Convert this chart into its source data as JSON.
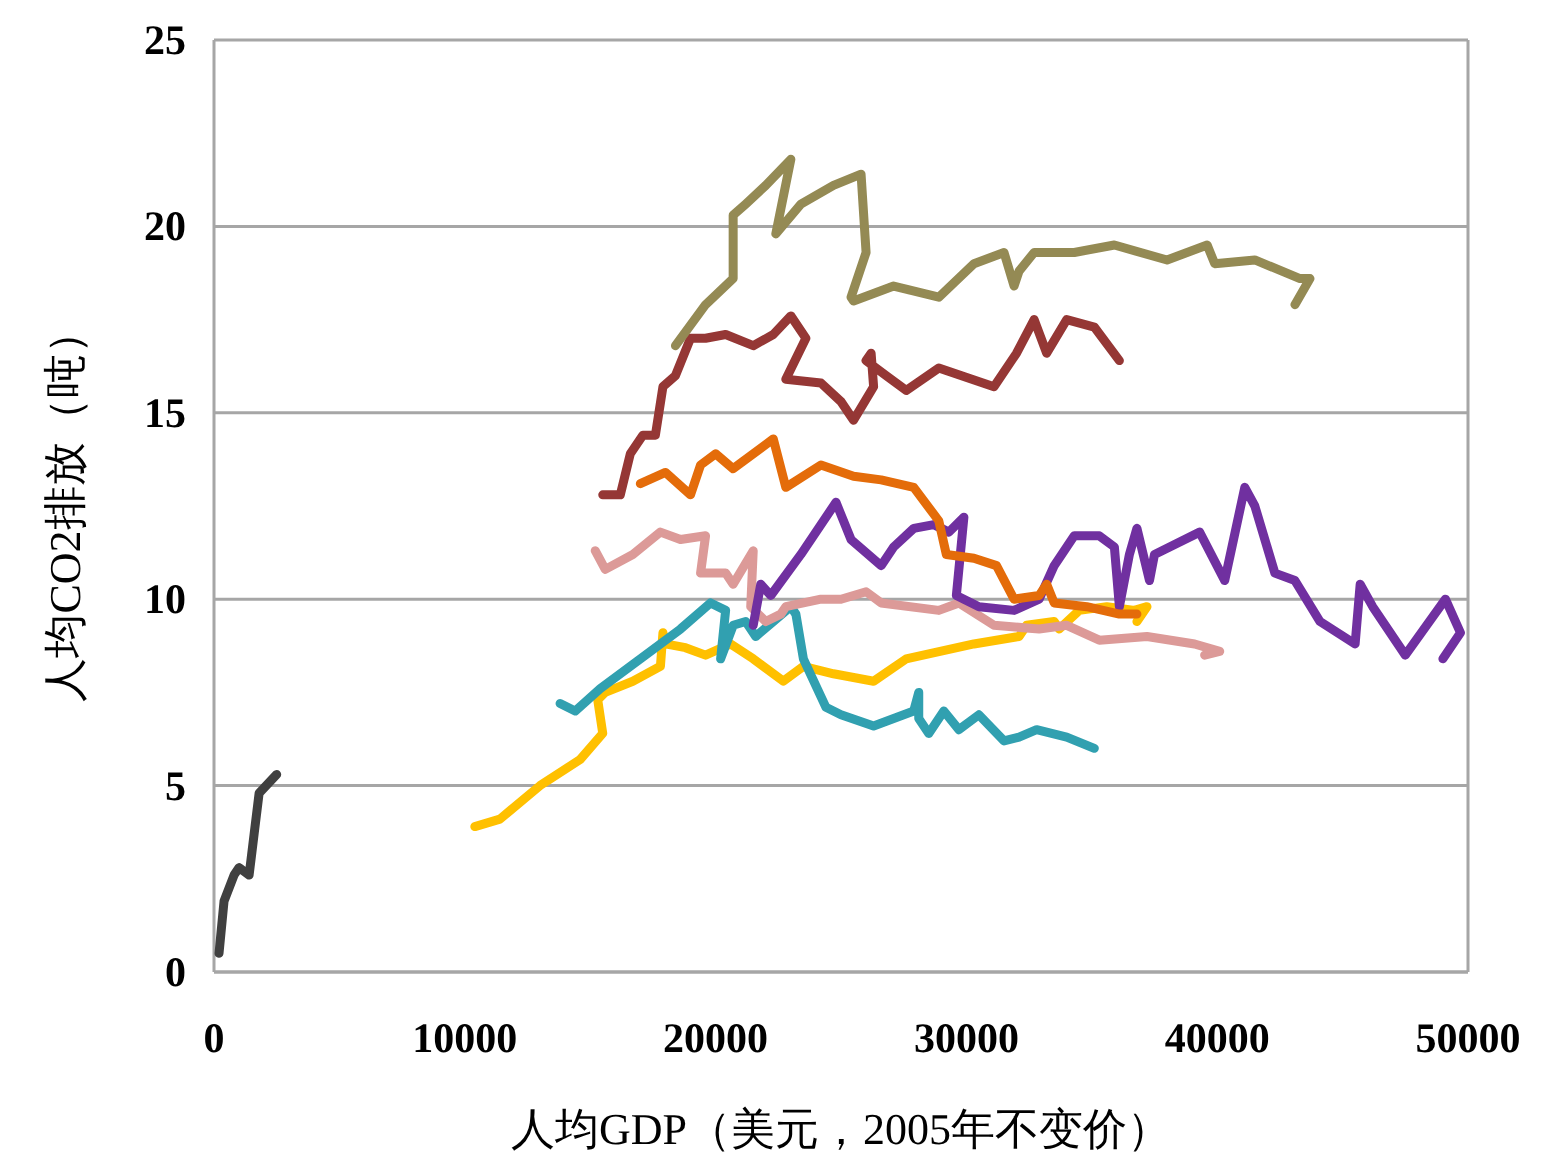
{
  "chart_data": {
    "type": "line",
    "xlabel": "人均GDP（美元，2005年不变价）",
    "ylabel": "人均CO2排放（吨）",
    "xlim": [
      0,
      50000
    ],
    "xticks": [
      0,
      10000,
      20000,
      30000,
      40000,
      50000
    ],
    "ylim": [
      0,
      25
    ],
    "yticks": [
      0,
      5,
      10,
      15,
      20,
      25
    ],
    "grid": "y",
    "series": [
      {
        "color": "#404040",
        "x": [
          200,
          400,
          800,
          1000,
          1400,
          1600,
          1800,
          2500
        ],
        "values": [
          0.5,
          1.9,
          2.6,
          2.8,
          2.6,
          3.7,
          4.8,
          5.3
        ]
      },
      {
        "color": "#ffc000",
        "x": [
          10400,
          11400,
          13000,
          14600,
          15500,
          15300,
          15600,
          16700,
          17800,
          17900,
          18000,
          18800,
          19600,
          20600,
          21500,
          22700,
          23500,
          24700,
          26300,
          27600,
          30300,
          32100,
          32400,
          33500,
          33700,
          34500,
          35600,
          36700,
          37200,
          36800
        ],
        "values": [
          3.9,
          4.1,
          5.0,
          5.7,
          6.4,
          7.3,
          7.5,
          7.8,
          8.2,
          9.1,
          8.8,
          8.7,
          8.5,
          8.8,
          8.4,
          7.8,
          8.2,
          8.0,
          7.8,
          8.4,
          8.8,
          9.0,
          9.3,
          9.4,
          9.2,
          9.7,
          9.8,
          9.7,
          9.8,
          9.4
        ]
      },
      {
        "color": "#31a0b0",
        "x": [
          13800,
          14400,
          15400,
          17000,
          18600,
          19800,
          20400,
          20200,
          20700,
          21200,
          21600,
          22300,
          23000,
          23200,
          23500,
          24400,
          25000,
          26300,
          27900,
          28100,
          28100,
          28500,
          29100,
          29700,
          30500,
          31500,
          32100,
          32800,
          34000,
          35100
        ],
        "values": [
          7.2,
          7.0,
          7.6,
          8.4,
          9.2,
          9.9,
          9.7,
          8.4,
          9.3,
          9.4,
          9.0,
          9.4,
          9.8,
          9.6,
          8.4,
          7.1,
          6.9,
          6.6,
          7.0,
          7.5,
          6.8,
          6.4,
          7.0,
          6.5,
          6.9,
          6.2,
          6.3,
          6.5,
          6.3,
          6.0
        ]
      },
      {
        "color": "#dc9a98",
        "x": [
          15200,
          15600,
          16700,
          17800,
          18600,
          19600,
          19400,
          20400,
          20700,
          21500,
          21400,
          22000,
          22600,
          22800,
          24200,
          25000,
          26000,
          26600,
          28900,
          29700,
          31100,
          32900,
          34000,
          35300,
          37200,
          39100,
          40100,
          39500
        ],
        "values": [
          11.3,
          10.8,
          11.2,
          11.8,
          11.6,
          11.7,
          10.7,
          10.7,
          10.4,
          11.3,
          9.8,
          9.4,
          9.6,
          9.8,
          10.0,
          10.0,
          10.2,
          9.9,
          9.7,
          9.9,
          9.3,
          9.2,
          9.3,
          8.9,
          9.0,
          8.8,
          8.6,
          8.5
        ]
      },
      {
        "color": "#7030a0",
        "x": [
          21500,
          21800,
          22200,
          23400,
          24800,
          25400,
          26600,
          27100,
          27900,
          28700,
          29300,
          29900,
          29600,
          30500,
          31900,
          32900,
          33500,
          34300,
          35300,
          35900,
          36100,
          36500,
          36800,
          37300,
          37500,
          39300,
          40300,
          41100,
          41500,
          42300,
          43100,
          44100,
          45500,
          45700,
          46200,
          47500,
          49100,
          49700,
          49000
        ],
        "values": [
          9.3,
          10.4,
          10.1,
          11.2,
          12.6,
          11.6,
          10.9,
          11.4,
          11.9,
          12.0,
          11.8,
          12.2,
          10.1,
          9.8,
          9.7,
          10.0,
          10.9,
          11.7,
          11.7,
          11.4,
          9.8,
          11.2,
          11.9,
          10.5,
          11.2,
          11.8,
          10.5,
          13.0,
          12.5,
          10.7,
          10.5,
          9.4,
          8.8,
          10.4,
          9.8,
          8.5,
          10.0,
          9.1,
          8.4
        ]
      },
      {
        "color": "#e46c0a",
        "x": [
          17000,
          18000,
          19000,
          19400,
          20000,
          20700,
          22300,
          22800,
          24200,
          25500,
          26600,
          27900,
          28900,
          29200,
          30300,
          31200,
          31900,
          32900,
          33200,
          33500,
          34800,
          36100,
          36800
        ],
        "values": [
          13.1,
          13.4,
          12.8,
          13.6,
          13.9,
          13.5,
          14.3,
          13.0,
          13.6,
          13.3,
          13.2,
          13.0,
          12.1,
          11.2,
          11.1,
          10.9,
          10.0,
          10.1,
          10.4,
          9.9,
          9.8,
          9.6,
          9.6
        ]
      },
      {
        "color": "#953735",
        "x": [
          15500,
          16200,
          16600,
          17100,
          17600,
          17900,
          18400,
          19000,
          19600,
          20400,
          21500,
          22300,
          23000,
          23600,
          22800,
          24200,
          25000,
          25500,
          26300,
          26200,
          26000,
          26800,
          27600,
          28900,
          31100,
          32000,
          32700,
          33200,
          34000,
          35100,
          36100
        ],
        "values": [
          12.8,
          12.8,
          13.9,
          14.4,
          14.4,
          15.7,
          16.0,
          17.0,
          17.0,
          17.1,
          16.8,
          17.1,
          17.6,
          17.0,
          15.9,
          15.8,
          15.3,
          14.8,
          15.7,
          16.6,
          16.4,
          16.0,
          15.6,
          16.2,
          15.7,
          16.6,
          17.5,
          16.6,
          17.5,
          17.3,
          16.4
        ]
      },
      {
        "color": "#948a54",
        "x": [
          18400,
          19600,
          20700,
          20700,
          21200,
          22000,
          23000,
          22400,
          23400,
          24700,
          25800,
          26000,
          25400,
          25500,
          27100,
          28900,
          30300,
          31500,
          31900,
          32100,
          32700,
          34300,
          35900,
          38000,
          39600,
          39900,
          41500,
          43300,
          43700,
          43100
        ],
        "values": [
          16.8,
          17.9,
          18.6,
          20.3,
          20.6,
          21.1,
          21.8,
          19.8,
          20.6,
          21.1,
          21.4,
          19.3,
          18.1,
          18.0,
          18.4,
          18.1,
          19.0,
          19.3,
          18.4,
          18.8,
          19.3,
          19.3,
          19.5,
          19.1,
          19.5,
          19.0,
          19.1,
          18.6,
          18.6,
          17.9
        ]
      }
    ]
  }
}
